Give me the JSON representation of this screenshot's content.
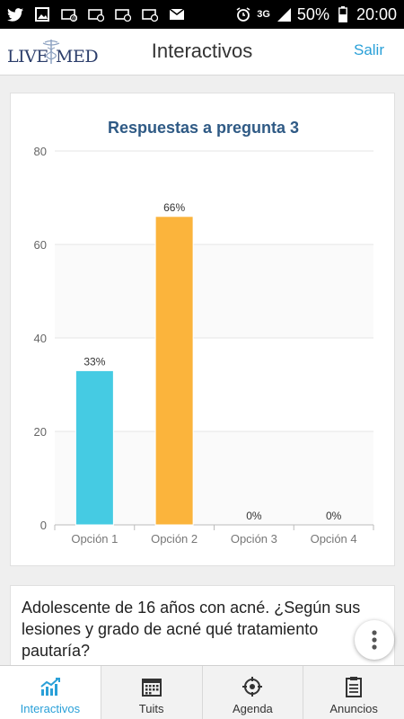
{
  "statusbar": {
    "battery": "50%",
    "time": "20:00",
    "network": "3G",
    "icons": [
      "twitter-icon",
      "image-icon",
      "email-icon",
      "email-icon",
      "email-icon",
      "email-icon",
      "mail-icon",
      "alarm-icon",
      "signal-icon",
      "battery-icon"
    ]
  },
  "header": {
    "logo_left": "LIVE",
    "logo_right": "MED",
    "title": "Interactivos",
    "exit_label": "Salir"
  },
  "chart_data": {
    "type": "bar",
    "title": "Respuestas a pregunta 3",
    "categories": [
      "Opción 1",
      "Opción 2",
      "Opción 3",
      "Opción 4"
    ],
    "values": [
      33,
      66,
      0,
      0
    ],
    "data_labels": [
      "33%",
      "66%",
      "0%",
      "0%"
    ],
    "colors": [
      "#45cbe3",
      "#fbb43c",
      "#45cbe3",
      "#fbb43c"
    ],
    "ylim": [
      0,
      80
    ],
    "yticks": [
      "0",
      "20",
      "40",
      "60",
      "80"
    ],
    "grid": true,
    "legend": "none"
  },
  "question": {
    "text": "Adolescente de 16 años con acné. ¿Según sus lesiones y grado de acné qué tratamiento pautaría?"
  },
  "bottomnav": {
    "items": [
      {
        "label": "Interactivos",
        "icon": "chart-icon",
        "active": true
      },
      {
        "label": "Tuits",
        "icon": "calendar-icon",
        "active": false
      },
      {
        "label": "Agenda",
        "icon": "target-icon",
        "active": false
      },
      {
        "label": "Anuncios",
        "icon": "clipboard-icon",
        "active": false
      }
    ]
  },
  "colors": {
    "accent": "#2aa0d8",
    "chart_title": "#2f5a85"
  }
}
